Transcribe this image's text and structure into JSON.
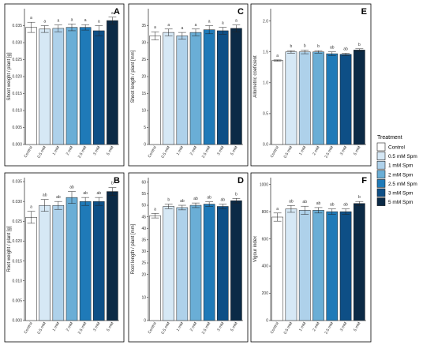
{
  "legend": {
    "title": "Treatment",
    "entries": [
      "Control",
      "0.5 mM Spm",
      "1 mM Spm",
      "2 mM Spm",
      "2.5 mM Spm",
      "3 mM Spm",
      "5 mM Spm"
    ]
  },
  "colors": [
    "#ffffff",
    "#d6e8f5",
    "#aed1ea",
    "#6aaed6",
    "#1f7ab8",
    "#0e4f86",
    "#0b2a46"
  ],
  "chart_data": [
    {
      "id": "A",
      "type": "bar",
      "title": "A",
      "ylabel": "Shoot weight / plant [g]",
      "categories": [
        "Control",
        "0.5 mM",
        "1 mM",
        "2 mM",
        "2.5 mM",
        "3 mM",
        "5 mM"
      ],
      "values": [
        0.0345,
        0.034,
        0.0342,
        0.0345,
        0.0345,
        0.0335,
        0.0365
      ],
      "errors": [
        0.0015,
        0.001,
        0.001,
        0.001,
        0.0008,
        0.0015,
        0.001
      ],
      "letters": [
        "a",
        "a",
        "a",
        "a",
        "a",
        "a",
        "a"
      ],
      "ylim": [
        0,
        0.04
      ],
      "yticks": [
        "0.000",
        "0.005",
        "0.010",
        "0.015",
        "0.020",
        "0.025",
        "0.030",
        "0.035"
      ]
    },
    {
      "id": "C",
      "type": "bar",
      "title": "C",
      "ylabel": "Shoot length / plant [mm]",
      "categories": [
        "Control",
        "0.5 mM",
        "1 mM",
        "2 mM",
        "2.5 mM",
        "3 mM",
        "5 mM"
      ],
      "values": [
        32.0,
        33.0,
        32.0,
        33.0,
        33.8,
        33.5,
        34.2
      ],
      "errors": [
        1.2,
        1.0,
        1.0,
        1.0,
        1.2,
        1.0,
        1.0
      ],
      "letters": [
        "a",
        "a",
        "a",
        "a",
        "a",
        "a",
        "a"
      ],
      "ylim": [
        0,
        40
      ],
      "yticks": [
        "0",
        "5",
        "10",
        "15",
        "20",
        "25",
        "30",
        "35"
      ]
    },
    {
      "id": "E",
      "type": "bar",
      "title": "E",
      "ylabel": "Allometric coeficient",
      "categories": [
        "Control",
        "0.5 mM",
        "1 mM",
        "2 mM",
        "2.5 mM",
        "3 mM",
        "5 mM"
      ],
      "values": [
        1.36,
        1.5,
        1.5,
        1.5,
        1.47,
        1.46,
        1.53
      ],
      "errors": [
        0.01,
        0.02,
        0.03,
        0.02,
        0.03,
        0.02,
        0.02
      ],
      "letters": [
        "a",
        "b",
        "b",
        "b",
        "ab",
        "ab",
        "b"
      ],
      "ylim": [
        0,
        2.2
      ],
      "yticks": [
        "0.0",
        "0.5",
        "1.0",
        "1.5",
        "2.0"
      ]
    },
    {
      "id": "B",
      "type": "bar",
      "title": "B",
      "ylabel": "Root weight / plant [g]",
      "categories": [
        "Control",
        "0.5 mM",
        "1 mM",
        "2 mM",
        "2.5 mM",
        "3 mM",
        "5 mM"
      ],
      "values": [
        0.026,
        0.029,
        0.029,
        0.031,
        0.03,
        0.03,
        0.0325
      ],
      "errors": [
        0.0015,
        0.0015,
        0.001,
        0.0015,
        0.001,
        0.001,
        0.001
      ],
      "letters": [
        "a",
        "ab",
        "ab",
        "ab",
        "ab",
        "ab",
        "b"
      ],
      "ylim": [
        0,
        0.036
      ],
      "yticks": [
        "0.000",
        "0.005",
        "0.010",
        "0.015",
        "0.020",
        "0.025",
        "0.030",
        "0.035"
      ]
    },
    {
      "id": "D",
      "type": "bar",
      "title": "D",
      "ylabel": "Root length / plant [mm]",
      "categories": [
        "Control",
        "0.5 mM",
        "1 mM",
        "2 mM",
        "2.5 mM",
        "3 mM",
        "5 mM"
      ],
      "values": [
        45.5,
        49.5,
        49.0,
        50.0,
        50.5,
        49.5,
        52.0
      ],
      "errors": [
        1.0,
        1.0,
        1.0,
        1.0,
        1.0,
        1.0,
        1.0
      ],
      "letters": [
        "a",
        "b",
        "ab",
        "ab",
        "ab",
        "ab",
        "b"
      ],
      "ylim": [
        0,
        62
      ],
      "yticks": [
        "0",
        "10",
        "20",
        "25",
        "30",
        "35",
        "40",
        "45",
        "50",
        "55",
        "60"
      ]
    },
    {
      "id": "F",
      "type": "bar",
      "title": "F",
      "ylabel": "Vigour index",
      "categories": [
        "Control",
        "0.5 mM",
        "1 mM",
        "2 mM",
        "2.5 mM",
        "3 mM",
        "5 mM"
      ],
      "values": [
        760,
        820,
        810,
        810,
        800,
        800,
        860
      ],
      "errors": [
        30,
        25,
        30,
        20,
        20,
        20,
        15
      ],
      "letters": [
        "a",
        "ab",
        "ab",
        "ab",
        "ab",
        "ab",
        "b"
      ],
      "ylim": [
        0,
        1050
      ],
      "yticks": [
        "0",
        "200",
        "400",
        "600",
        "800",
        "1000"
      ]
    }
  ]
}
